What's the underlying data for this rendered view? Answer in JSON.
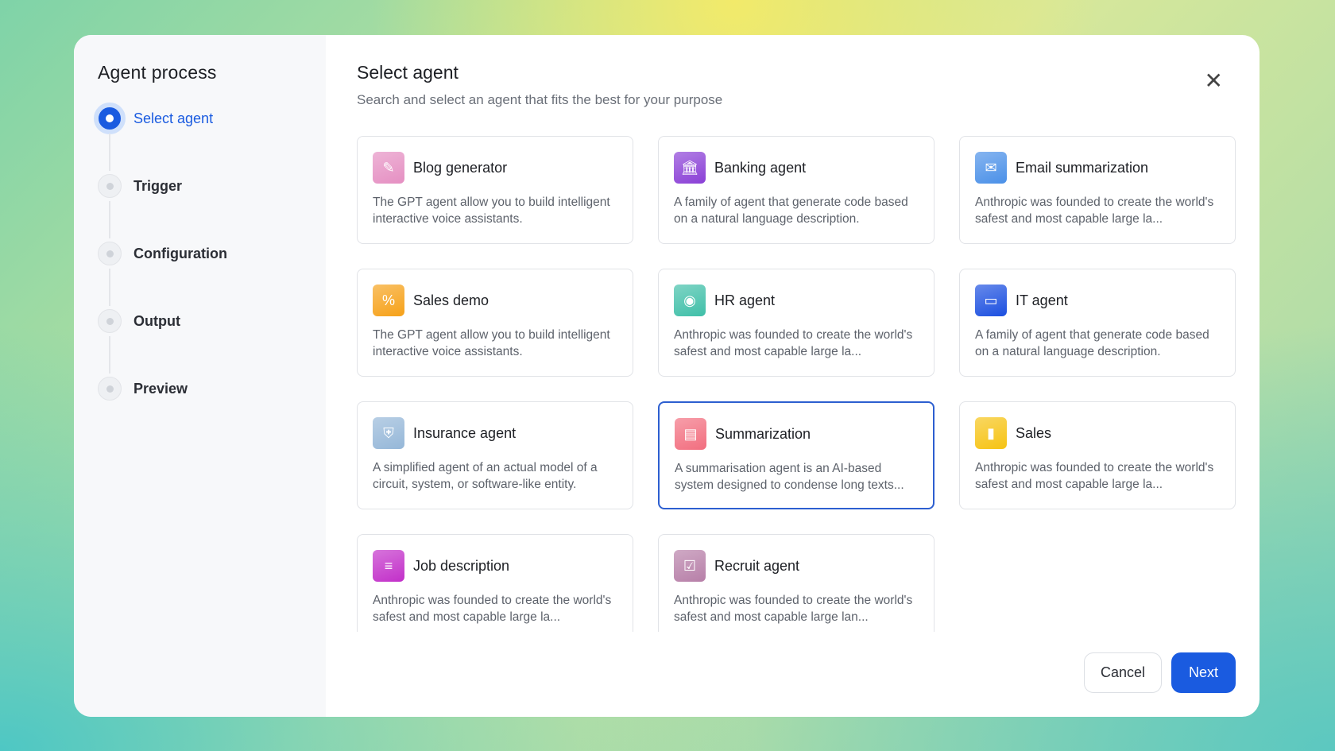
{
  "sidebar": {
    "title": "Agent process",
    "steps": [
      {
        "label": "Select agent",
        "active": true
      },
      {
        "label": "Trigger"
      },
      {
        "label": "Configuration"
      },
      {
        "label": "Output"
      },
      {
        "label": "Preview"
      }
    ]
  },
  "main": {
    "title": "Select agent",
    "subtitle": "Search and select an agent that fits the best for your purpose",
    "close_icon": "close-icon"
  },
  "agents": [
    {
      "name": "Blog generator",
      "desc": "The GPT agent allow you to build intelligent interactive voice assistants.",
      "icon": "pen-icon",
      "color": "#e58fc2"
    },
    {
      "name": "Banking agent",
      "desc": "A family of agent that generate code based on a natural language description.",
      "icon": "bank-icon",
      "color": "#8a3fd6"
    },
    {
      "name": "Email summarization",
      "desc": "Anthropic was founded to create the world's safest and most capable large la...",
      "icon": "mail-icon",
      "color": "#4a90e8"
    },
    {
      "name": "Sales demo",
      "desc": "The GPT agent allow you to build intelligent interactive voice assistants.",
      "icon": "discount-icon",
      "color": "#f6a118"
    },
    {
      "name": "HR agent",
      "desc": "Anthropic was founded to create the world's safest and most capable large la...",
      "icon": "user-icon",
      "color": "#3fbfa8"
    },
    {
      "name": "IT agent",
      "desc": "A family of agent that generate code based on a natural language description.",
      "icon": "monitor-icon",
      "color": "#1b4fe0"
    },
    {
      "name": "Insurance agent",
      "desc": "A simplified agent of an actual model of a circuit, system, or software-like entity.",
      "icon": "shield-icon",
      "color": "#95b7d8"
    },
    {
      "name": "Summarization",
      "desc": "A summarisation agent is an AI-based system designed to condense long texts...",
      "icon": "document-sparkle-icon",
      "color": "#f26e7f",
      "selected": true
    },
    {
      "name": "Sales",
      "desc": "Anthropic was founded to create the world's safest and most capable large la...",
      "icon": "clipboard-icon",
      "color": "#f6c313"
    },
    {
      "name": "Job description",
      "desc": "Anthropic was founded to create the world's safest and most capable large la...",
      "icon": "file-icon",
      "color": "#c22fc9"
    },
    {
      "name": "Recruit agent",
      "desc": "Anthropic was founded to create the world's safest and most capable large lan...",
      "icon": "recruit-icon",
      "color": "#b77fa8"
    }
  ],
  "footer": {
    "cancel": "Cancel",
    "next": "Next"
  }
}
